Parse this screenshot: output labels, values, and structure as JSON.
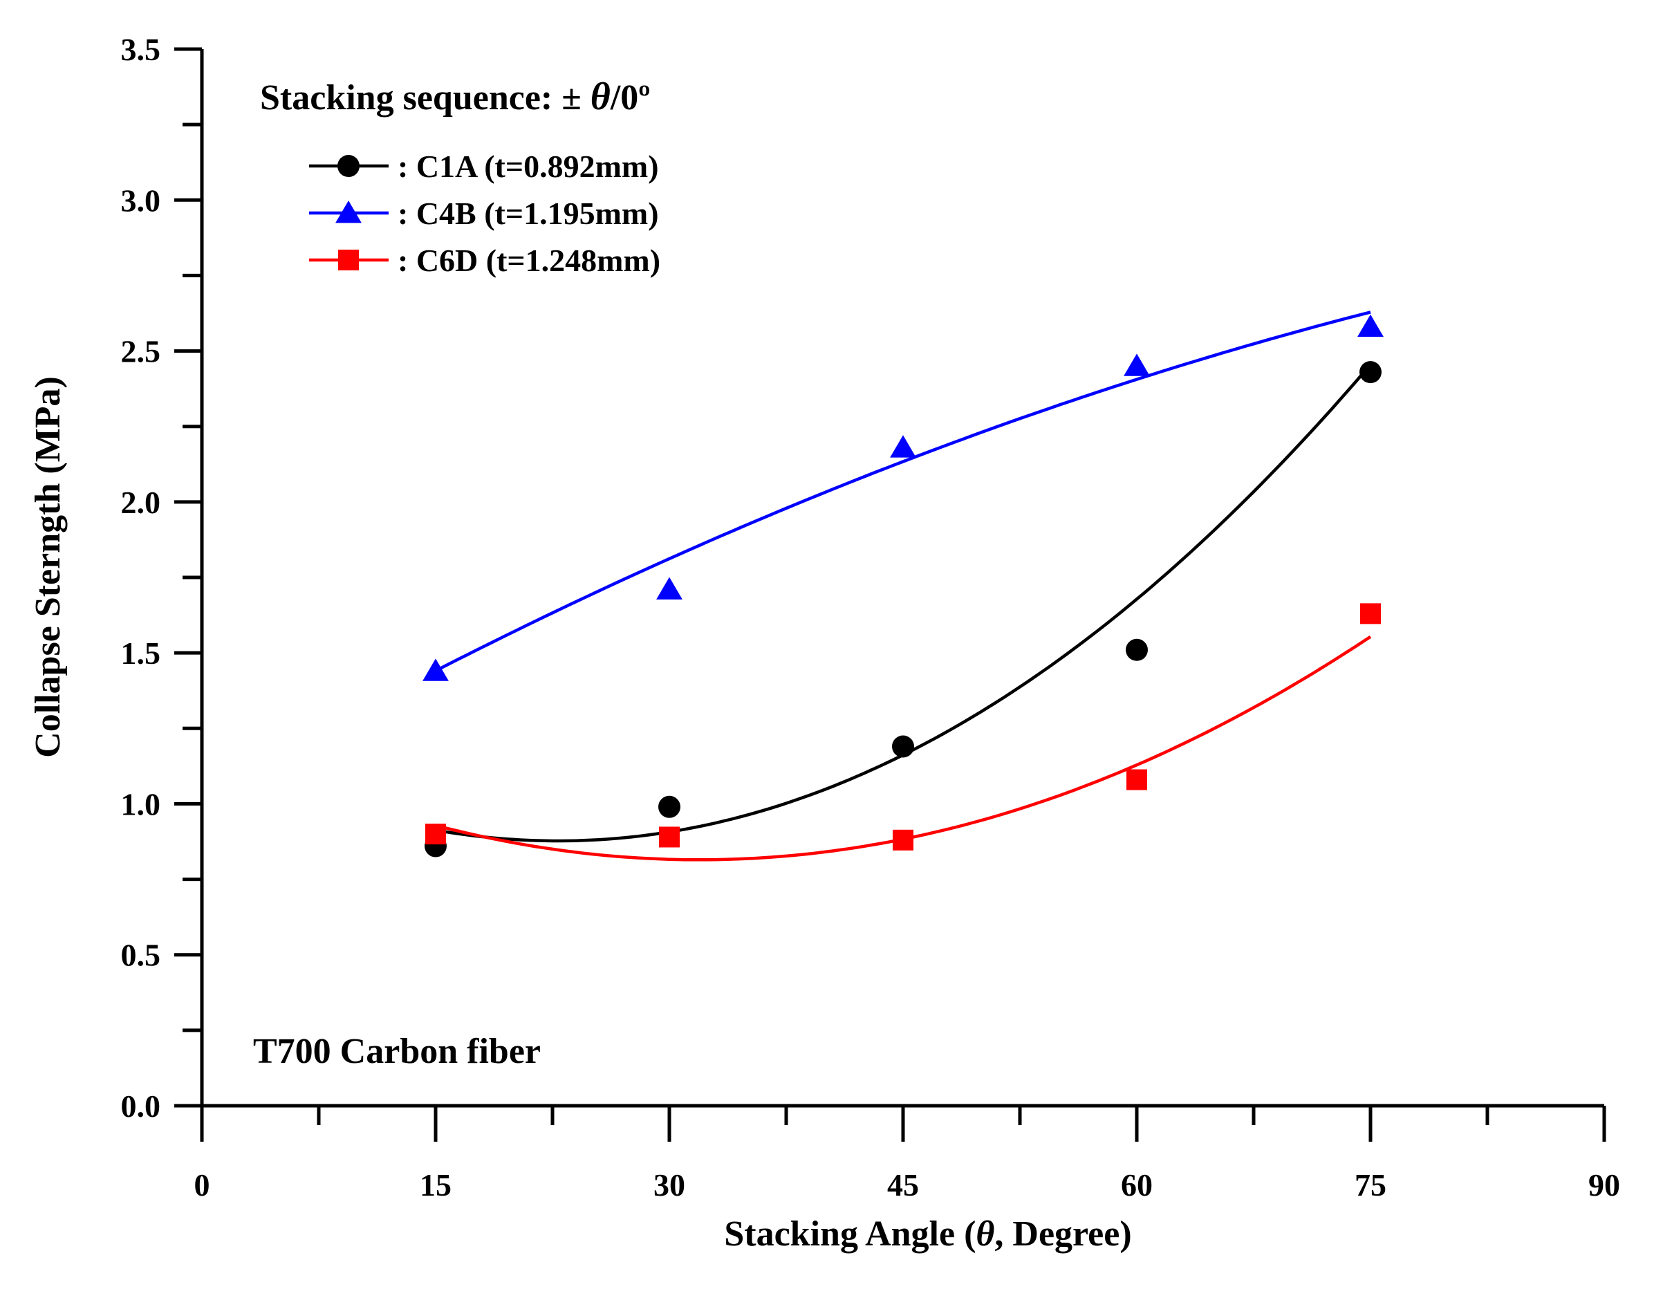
{
  "chart_data": {
    "type": "scatter",
    "title": "",
    "xlabel": {
      "prefix": "Stacking Angle (",
      "symbol": "θ",
      "suffix": ", Degree)"
    },
    "ylabel": "Collapse Sterngth (MPa)",
    "xlim": [
      0,
      90
    ],
    "ylim": [
      0,
      3.5
    ],
    "x_ticks": [
      "0",
      "15",
      "30",
      "45",
      "60",
      "75",
      "90"
    ],
    "y_ticks": [
      "0.0",
      "0.5",
      "1.0",
      "1.5",
      "2.0",
      "2.5",
      "3.0",
      "3.5"
    ],
    "legend_title": {
      "prefix": "Stacking sequence: ± ",
      "symbol": "θ",
      "suffix": "/0º"
    },
    "annotation": "T700 Carbon fiber",
    "x": [
      15,
      30,
      45,
      60,
      75
    ],
    "series": [
      {
        "name": ": C1A (t=0.892mm)",
        "marker": "circle",
        "color": "#000000",
        "values": [
          0.86,
          0.99,
          1.19,
          1.51,
          2.43
        ],
        "fit": [
          0.00058,
          -0.0265,
          1.18
        ]
      },
      {
        "name": ": C4B (t=1.195mm)",
        "marker": "triangle",
        "color": "#0000ff",
        "values": [
          1.44,
          1.71,
          2.18,
          2.45,
          2.58
        ],
        "fit": [
          -0.00011,
          0.0297,
          1.02
        ]
      },
      {
        "name": ": C6D (t=1.248mm)",
        "marker": "square",
        "color": "#ff0000",
        "values": [
          0.9,
          0.89,
          0.88,
          1.08,
          1.63
        ],
        "fit": [
          0.000398,
          -0.0254,
          1.22
        ]
      }
    ]
  }
}
